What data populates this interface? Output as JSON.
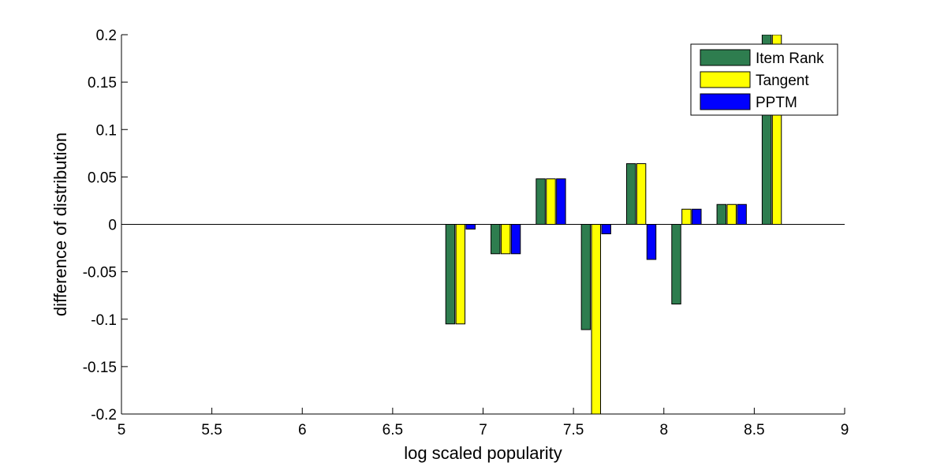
{
  "chart_data": {
    "type": "bar",
    "xlabel": "log scaled popularity",
    "ylabel": "difference of distribution",
    "xlim": [
      5,
      9
    ],
    "ylim": [
      -0.2,
      0.2
    ],
    "xticks": [
      "5",
      "5.5",
      "6",
      "6.5",
      "7",
      "7.5",
      "8",
      "8.5",
      "9"
    ],
    "yticks": [
      "0.2",
      "0.15",
      "0.1",
      "0.05",
      "0",
      "-0.05",
      "-0.1",
      "-0.15",
      "-0.2"
    ],
    "grid": false,
    "legend_position": "top-right",
    "bar_width": 0.05,
    "categories": [
      6.875,
      7.125,
      7.375,
      7.625,
      7.875,
      8.125,
      8.375,
      8.625
    ],
    "series": [
      {
        "name": "Item Rank",
        "color": "#2e7d4f",
        "values": [
          -0.105,
          -0.031,
          0.048,
          -0.111,
          0.064,
          -0.084,
          0.021,
          0.2
        ]
      },
      {
        "name": "Tangent",
        "color": "#ffff00",
        "values": [
          -0.105,
          -0.031,
          0.048,
          -0.2,
          0.064,
          0.016,
          0.021,
          0.2
        ]
      },
      {
        "name": "PPTM",
        "color": "#0000ff",
        "values": [
          -0.005,
          -0.031,
          0.048,
          -0.01,
          -0.037,
          0.016,
          0.021,
          null
        ]
      }
    ]
  }
}
